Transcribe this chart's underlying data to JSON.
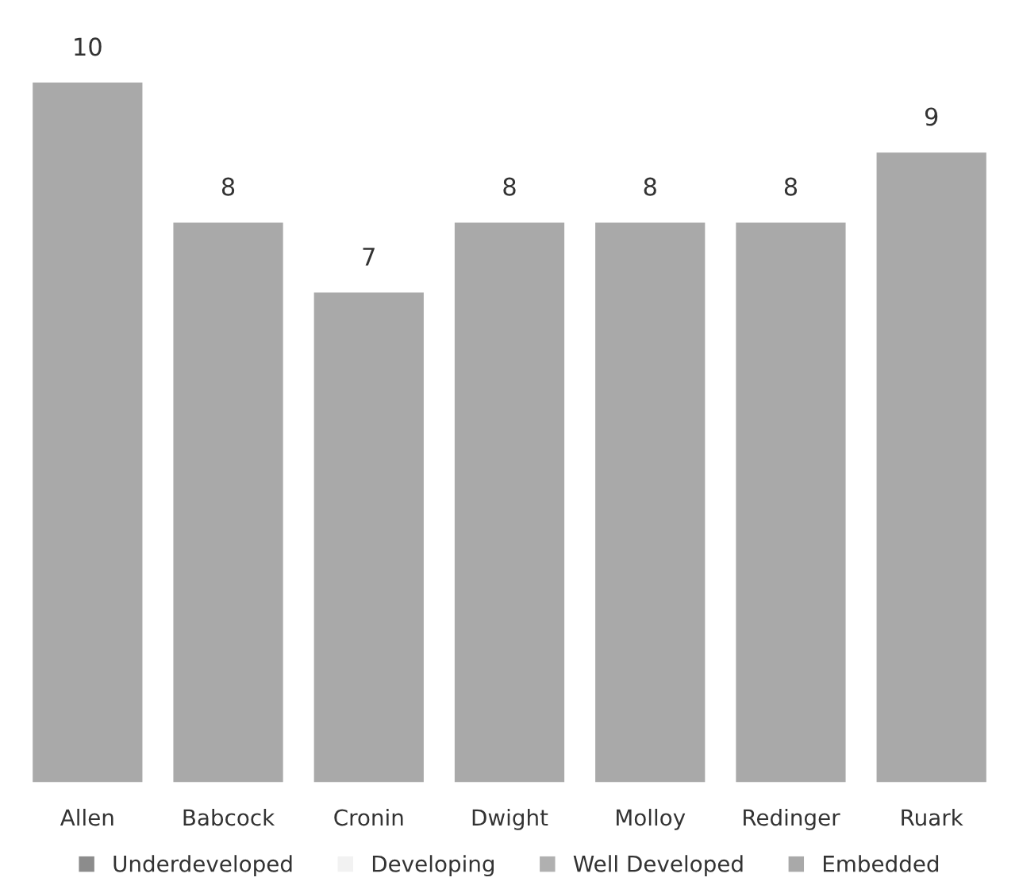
{
  "chart_data": {
    "type": "bar",
    "categories": [
      "Allen",
      "Babcock",
      "Cronin",
      "Dwight",
      "Molloy",
      "Redinger",
      "Ruark"
    ],
    "series": [
      {
        "name": "Underdeveloped",
        "color": "#8c8c8c",
        "values": [
          null,
          null,
          null,
          null,
          null,
          null,
          null
        ]
      },
      {
        "name": "Developing",
        "color": "#f2f2f2",
        "values": [
          null,
          null,
          null,
          null,
          null,
          null,
          null
        ]
      },
      {
        "name": "Well Developed",
        "color": "#b0b0b0",
        "values": [
          null,
          null,
          null,
          null,
          null,
          null,
          null
        ]
      },
      {
        "name": "Embedded",
        "color": "#a9a9a9",
        "values": [
          10,
          8,
          7,
          8,
          8,
          8,
          9
        ]
      }
    ],
    "stacked": true,
    "data_labels": true,
    "legend": "bottom",
    "grid": false
  }
}
